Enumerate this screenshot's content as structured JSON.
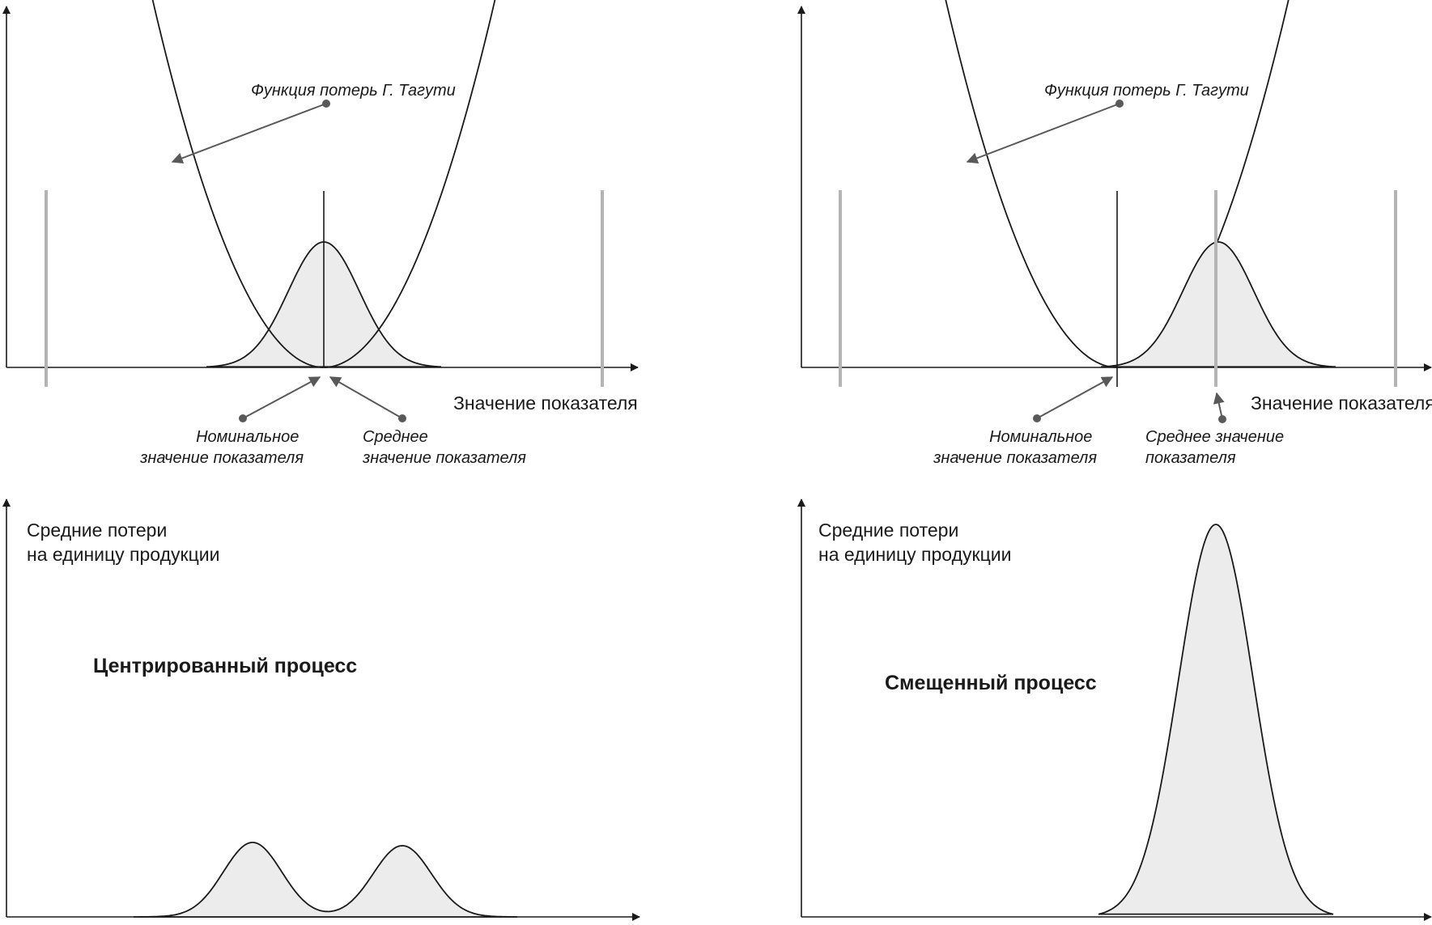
{
  "panels": {
    "top_left": {
      "loss_function_label": "Функция потерь Г. Тагути",
      "x_axis_label": "Значение показателя",
      "nominal_label": [
        "Номинальное",
        "значение показателя"
      ],
      "mean_label": [
        "Среднее",
        "значение показателя"
      ]
    },
    "top_right": {
      "loss_function_label": "Функция потерь Г. Тагути",
      "x_axis_label": "Значение показателя",
      "nominal_label": [
        "Номинальное",
        "значение показателя"
      ],
      "mean_label": [
        "Среднее значение",
        "показателя"
      ]
    },
    "bottom_left": {
      "y_axis_label": [
        "Средние потери",
        "на единицу продукции"
      ],
      "title": "Центрированный процесс"
    },
    "bottom_right": {
      "y_axis_label": [
        "Средние потери",
        "на единицу продукции"
      ],
      "title": "Смещенный процесс"
    }
  },
  "colors": {
    "axis": "#1a1a1a",
    "curve": "#1a1a1a",
    "fill": "#ececec",
    "tolerance_line": "#b4b4b4",
    "pointer": "#595959"
  }
}
